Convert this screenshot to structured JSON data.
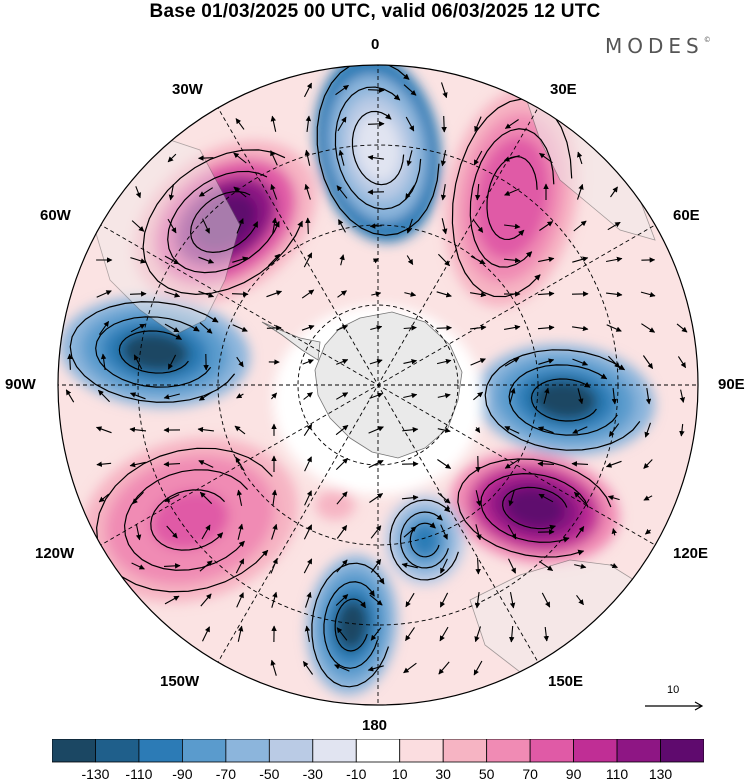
{
  "header": {
    "title": "Base 01/03/2025 00 UTC, valid 06/03/2025 12 UTC",
    "brand": "MODES",
    "brand_mark": "©"
  },
  "map": {
    "projection": "south-polar-stereographic",
    "longitude_labels": {
      "top": "0",
      "top_right": "30E",
      "right_upper": "60E",
      "right": "90E",
      "right_lower": "120E",
      "bottom_right": "150E",
      "bottom": "180",
      "bottom_left": "150W",
      "left_lower": "120W",
      "left": "90W",
      "left_upper": "60W",
      "top_left": "30W"
    },
    "reference_vector_value": "10"
  },
  "colorbar": {
    "tick_labels": [
      "-130",
      "-110",
      "-90",
      "-70",
      "-50",
      "-30",
      "-10",
      "10",
      "30",
      "50",
      "70",
      "90",
      "110",
      "130"
    ],
    "colors": [
      "#1b4763",
      "#1f5f8b",
      "#2c7bb6",
      "#5a9bcd",
      "#8cb5dc",
      "#bacbe5",
      "#e1e4f1",
      "#ffffff",
      "#fbdde0",
      "#f6b4c3",
      "#f08bb4",
      "#e05aa6",
      "#c02e95",
      "#8e1684",
      "#5f0a6e"
    ]
  }
}
